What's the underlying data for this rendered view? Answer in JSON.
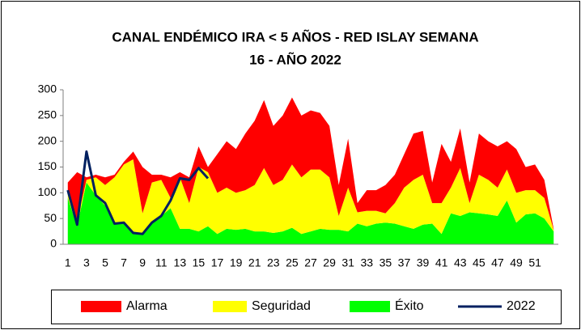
{
  "chart_data": {
    "type": "stacked_area",
    "title": "CANAL ENDÉMICO IRA  < 5 AÑOS - RED ISLAY SEMANA",
    "subtitle": "16 -  AÑO 2022",
    "categories": [
      1,
      null,
      3,
      null,
      5,
      null,
      7,
      null,
      9,
      null,
      11,
      null,
      13,
      null,
      15,
      null,
      17,
      null,
      19,
      null,
      21,
      null,
      23,
      null,
      25,
      null,
      27,
      null,
      29,
      null,
      31,
      null,
      33,
      null,
      35,
      null,
      37,
      null,
      39,
      null,
      41,
      null,
      43,
      null,
      45,
      null,
      47,
      null,
      49,
      null,
      51,
      null,
      null
    ],
    "ylim": [
      0,
      300
    ],
    "yticks": [
      0,
      50,
      100,
      150,
      200,
      250,
      300
    ],
    "grid": false,
    "series": [
      {
        "name": "Éxito",
        "color": "#00ff00",
        "values": [
          90,
          35,
          120,
          95,
          75,
          40,
          40,
          25,
          20,
          40,
          55,
          70,
          30,
          30,
          25,
          35,
          20,
          30,
          28,
          30,
          25,
          25,
          22,
          25,
          32,
          20,
          25,
          30,
          28,
          28,
          25,
          40,
          35,
          40,
          42,
          40,
          35,
          30,
          38,
          40,
          20,
          60,
          55,
          62,
          60,
          58,
          55,
          85,
          42,
          58,
          60,
          50,
          25
        ]
      },
      {
        "name": "Seguridad",
        "color": "#ffff00",
        "values": [
          10,
          10,
          5,
          35,
          40,
          90,
          115,
          140,
          40,
          80,
          70,
          20,
          100,
          50,
          125,
          105,
          80,
          80,
          72,
          75,
          90,
          123,
          93,
          100,
          123,
          110,
          120,
          115,
          102,
          27,
          85,
          22,
          30,
          25,
          18,
          40,
          75,
          95,
          97,
          40,
          60,
          50,
          93,
          18,
          75,
          67,
          55,
          60,
          58,
          47,
          45,
          40,
          3
        ]
      },
      {
        "name": "Alarma",
        "color": "#ff0000",
        "values": [
          20,
          95,
          5,
          5,
          15,
          5,
          5,
          15,
          90,
          15,
          10,
          40,
          10,
          50,
          40,
          10,
          75,
          90,
          85,
          110,
          125,
          132,
          115,
          125,
          130,
          120,
          115,
          110,
          100,
          60,
          95,
          18,
          40,
          40,
          55,
          55,
          65,
          90,
          85,
          40,
          115,
          50,
          77,
          40,
          80,
          75,
          80,
          55,
          85,
          45,
          50,
          35,
          2
        ]
      }
    ],
    "line": {
      "name": "2022",
      "color": "#002060",
      "values": [
        105,
        38,
        180,
        95,
        80,
        40,
        42,
        22,
        20,
        42,
        55,
        85,
        128,
        125,
        148,
        128,
        null,
        null,
        null,
        null,
        null,
        null,
        null,
        null,
        null,
        null,
        null,
        null,
        null,
        null,
        null,
        null,
        null,
        null,
        null,
        null,
        null,
        null,
        null,
        null,
        null,
        null,
        null,
        null,
        null,
        null,
        null,
        null,
        null,
        null,
        null,
        null,
        null
      ]
    },
    "legend": [
      "Alarma",
      "Seguridad",
      "Éxito",
      "2022"
    ]
  }
}
